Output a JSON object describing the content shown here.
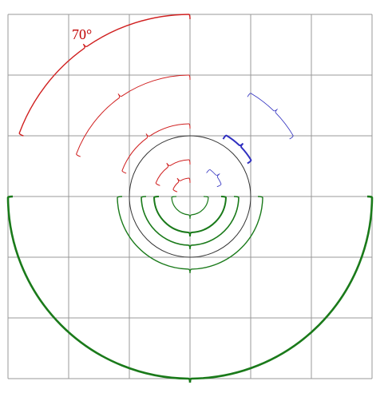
{
  "label": "70°"
}
